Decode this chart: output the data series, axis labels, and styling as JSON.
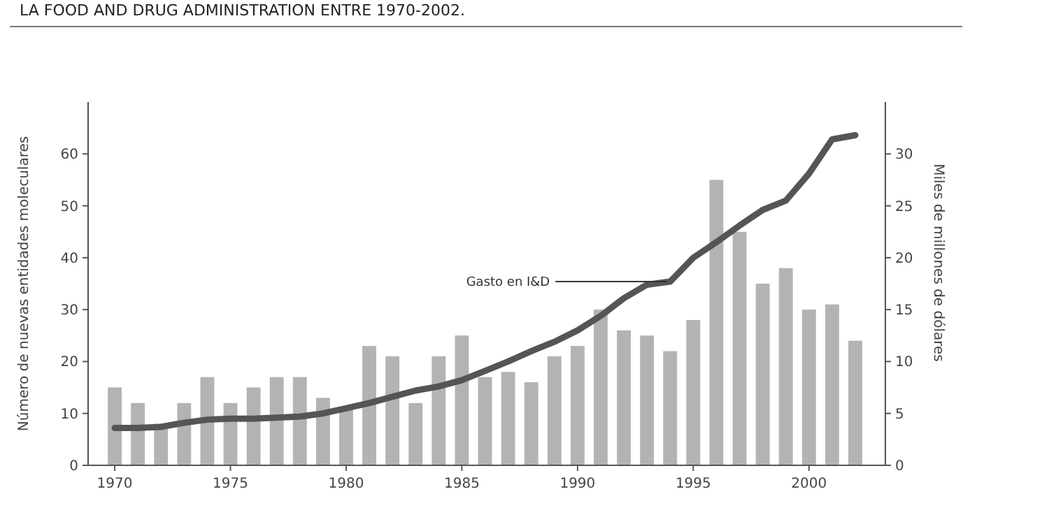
{
  "chart_data": {
    "type": "bar",
    "title": "LA FOOD AND DRUG ADMINISTRATION ENTRE 1970-2002.",
    "ylabel": "Número de nuevas entidades moleculares",
    "y2label": "Miles de millones de dólares",
    "x": [
      1970,
      1971,
      1972,
      1973,
      1974,
      1975,
      1976,
      1977,
      1978,
      1979,
      1980,
      1981,
      1982,
      1983,
      1984,
      1985,
      1986,
      1987,
      1988,
      1989,
      1990,
      1991,
      1992,
      1993,
      1994,
      1995,
      1996,
      1997,
      1998,
      1999,
      2000,
      2001,
      2002
    ],
    "xlim": [
      1968.85,
      2003.3
    ],
    "xticks": [
      1970,
      1975,
      1980,
      1985,
      1990,
      1995,
      2000
    ],
    "ylim": [
      0,
      70
    ],
    "yticks": [
      0,
      10,
      20,
      30,
      40,
      50,
      60
    ],
    "y2lim": [
      0,
      35
    ],
    "y2ticks": [
      0,
      5,
      10,
      15,
      20,
      25,
      30
    ],
    "series": [
      {
        "color": "#b3b3b3",
        "values": [
          15,
          12,
          8,
          12,
          17,
          12,
          15,
          17,
          17,
          13,
          11,
          23,
          21,
          12,
          21,
          25,
          17,
          18,
          16,
          21,
          23,
          30,
          26,
          25,
          22,
          28,
          55,
          45,
          35,
          38,
          30,
          31,
          24
        ]
      },
      {
        "type": "line",
        "axis": "y2",
        "name": "Gasto en I&D",
        "color": "#555555",
        "values": [
          3.6,
          3.6,
          3.7,
          4.1,
          4.4,
          4.5,
          4.5,
          4.6,
          4.7,
          5.0,
          5.5,
          6.0,
          6.6,
          7.2,
          7.6,
          8.2,
          9.1,
          10.0,
          11.0,
          11.9,
          13.0,
          14.4,
          16.1,
          17.4,
          17.7,
          20.0,
          21.5,
          23.1,
          24.6,
          25.5,
          28.1,
          31.4,
          31.8
        ]
      }
    ],
    "grid": false,
    "marker": "none",
    "line_style": "solid"
  }
}
